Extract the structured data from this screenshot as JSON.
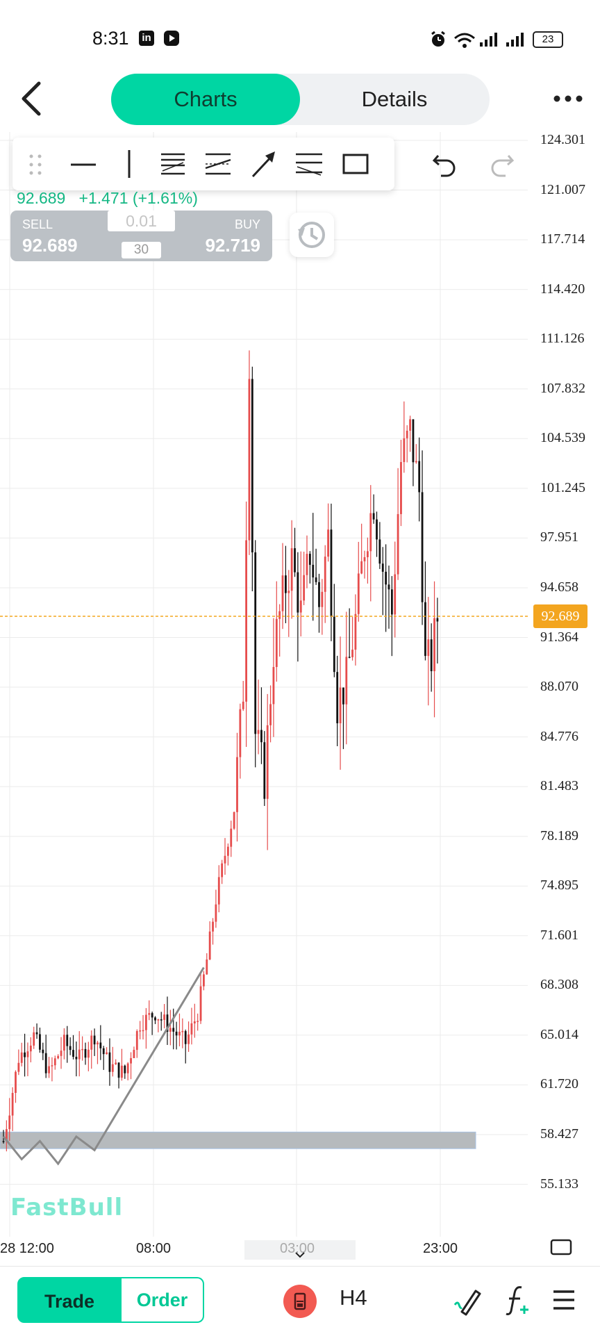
{
  "status_bar": {
    "time": "8:31",
    "app_icons": [
      "linkedin-icon",
      "youtube-icon"
    ],
    "system_icons": [
      "alarm-icon",
      "wifi-icon",
      "signal-icon",
      "signal-icon",
      "battery-icon"
    ],
    "battery": "23"
  },
  "header": {
    "tabs": [
      {
        "label": "Charts",
        "active": true
      },
      {
        "label": "Details",
        "active": false
      }
    ],
    "icons": [
      "back-icon",
      "more-icon"
    ]
  },
  "drawing_toolbar": {
    "tools": [
      "drag-handle-icon",
      "horizontal-line-icon",
      "vertical-line-icon",
      "fib-retracement-icon",
      "parallel-channel-icon",
      "arrow-icon",
      "fib-fan-icon",
      "rectangle-icon",
      "undo-icon",
      "redo-icon"
    ]
  },
  "quote": {
    "price": "92.689",
    "change": "+1.471 (+1.61%)",
    "sell_label": "SELL",
    "sell_price": "92.689",
    "buy_label": "BUY",
    "buy_price": "92.719",
    "lot_size": "0.01",
    "spread": "30"
  },
  "colors": {
    "accent": "#00d6a3",
    "up_candle": "#e64c4c",
    "down_candle": "#111111",
    "price_tag": "#f3a51f",
    "quote_text": "#14b784"
  },
  "chart_data": {
    "type": "candlestick",
    "timeframe": "H4",
    "current_price": "92.689",
    "y_axis_labels": [
      "124.301",
      "121.007",
      "117.714",
      "114.420",
      "111.126",
      "107.832",
      "104.539",
      "101.245",
      "97.951",
      "94.658",
      "91.364",
      "88.070",
      "84.776",
      "81.483",
      "78.189",
      "74.895",
      "71.601",
      "68.308",
      "65.014",
      "61.720",
      "58.427",
      "55.133"
    ],
    "ylim": [
      53.5,
      126
    ],
    "x_axis_labels": [
      "28 12:00",
      "08:00",
      "03:00",
      "23:00"
    ],
    "price_path": [
      {
        "i": 0,
        "p": 58.0
      },
      {
        "i": 5,
        "p": 63.5
      },
      {
        "i": 10,
        "p": 65.0
      },
      {
        "i": 15,
        "p": 62.5
      },
      {
        "i": 20,
        "p": 64.5
      },
      {
        "i": 25,
        "p": 63.5
      },
      {
        "i": 30,
        "p": 65.0
      },
      {
        "i": 35,
        "p": 63.0
      },
      {
        "i": 40,
        "p": 62.5
      },
      {
        "i": 45,
        "p": 65.8
      },
      {
        "i": 50,
        "p": 66.5
      },
      {
        "i": 55,
        "p": 65.5
      },
      {
        "i": 60,
        "p": 64.5
      },
      {
        "i": 64,
        "p": 66.5
      },
      {
        "i": 67,
        "p": 70.0
      },
      {
        "i": 70,
        "p": 74.0
      },
      {
        "i": 73,
        "p": 77.0
      },
      {
        "i": 76,
        "p": 80.0
      },
      {
        "i": 79,
        "p": 88.0
      },
      {
        "i": 81,
        "p": 110.0
      },
      {
        "i": 83,
        "p": 85.0
      },
      {
        "i": 86,
        "p": 82.0
      },
      {
        "i": 89,
        "p": 90.5
      },
      {
        "i": 92,
        "p": 94.0
      },
      {
        "i": 95,
        "p": 96.5
      },
      {
        "i": 98,
        "p": 93.0
      },
      {
        "i": 101,
        "p": 97.0
      },
      {
        "i": 104,
        "p": 93.5
      },
      {
        "i": 107,
        "p": 98.0
      },
      {
        "i": 110,
        "p": 87.0
      },
      {
        "i": 113,
        "p": 88.5
      },
      {
        "i": 116,
        "p": 92.5
      },
      {
        "i": 119,
        "p": 97.5
      },
      {
        "i": 122,
        "p": 100.5
      },
      {
        "i": 125,
        "p": 96.0
      },
      {
        "i": 128,
        "p": 93.0
      },
      {
        "i": 131,
        "p": 103.0
      },
      {
        "i": 134,
        "p": 105.0
      },
      {
        "i": 137,
        "p": 101.0
      },
      {
        "i": 139,
        "p": 89.5
      },
      {
        "i": 141,
        "p": 90.0
      },
      {
        "i": 143,
        "p": 92.7
      }
    ],
    "drawn_line": [
      {
        "i": 0,
        "p": 58.3
      },
      {
        "i": 6,
        "p": 56.8
      },
      {
        "i": 12,
        "p": 58.0
      },
      {
        "i": 18,
        "p": 56.5
      },
      {
        "i": 24,
        "p": 58.3
      },
      {
        "i": 30,
        "p": 57.4
      },
      {
        "i": 66,
        "p": 69.5
      }
    ],
    "support_zone": [
      57.5,
      58.6
    ]
  },
  "bottom_bar": {
    "trade_label": "Trade",
    "order_label": "Order",
    "timeframe_label": "H4",
    "icons": [
      "timer-icon",
      "draw-icon",
      "indicator-icon",
      "menu-icon"
    ]
  },
  "watermark": "FastBull"
}
